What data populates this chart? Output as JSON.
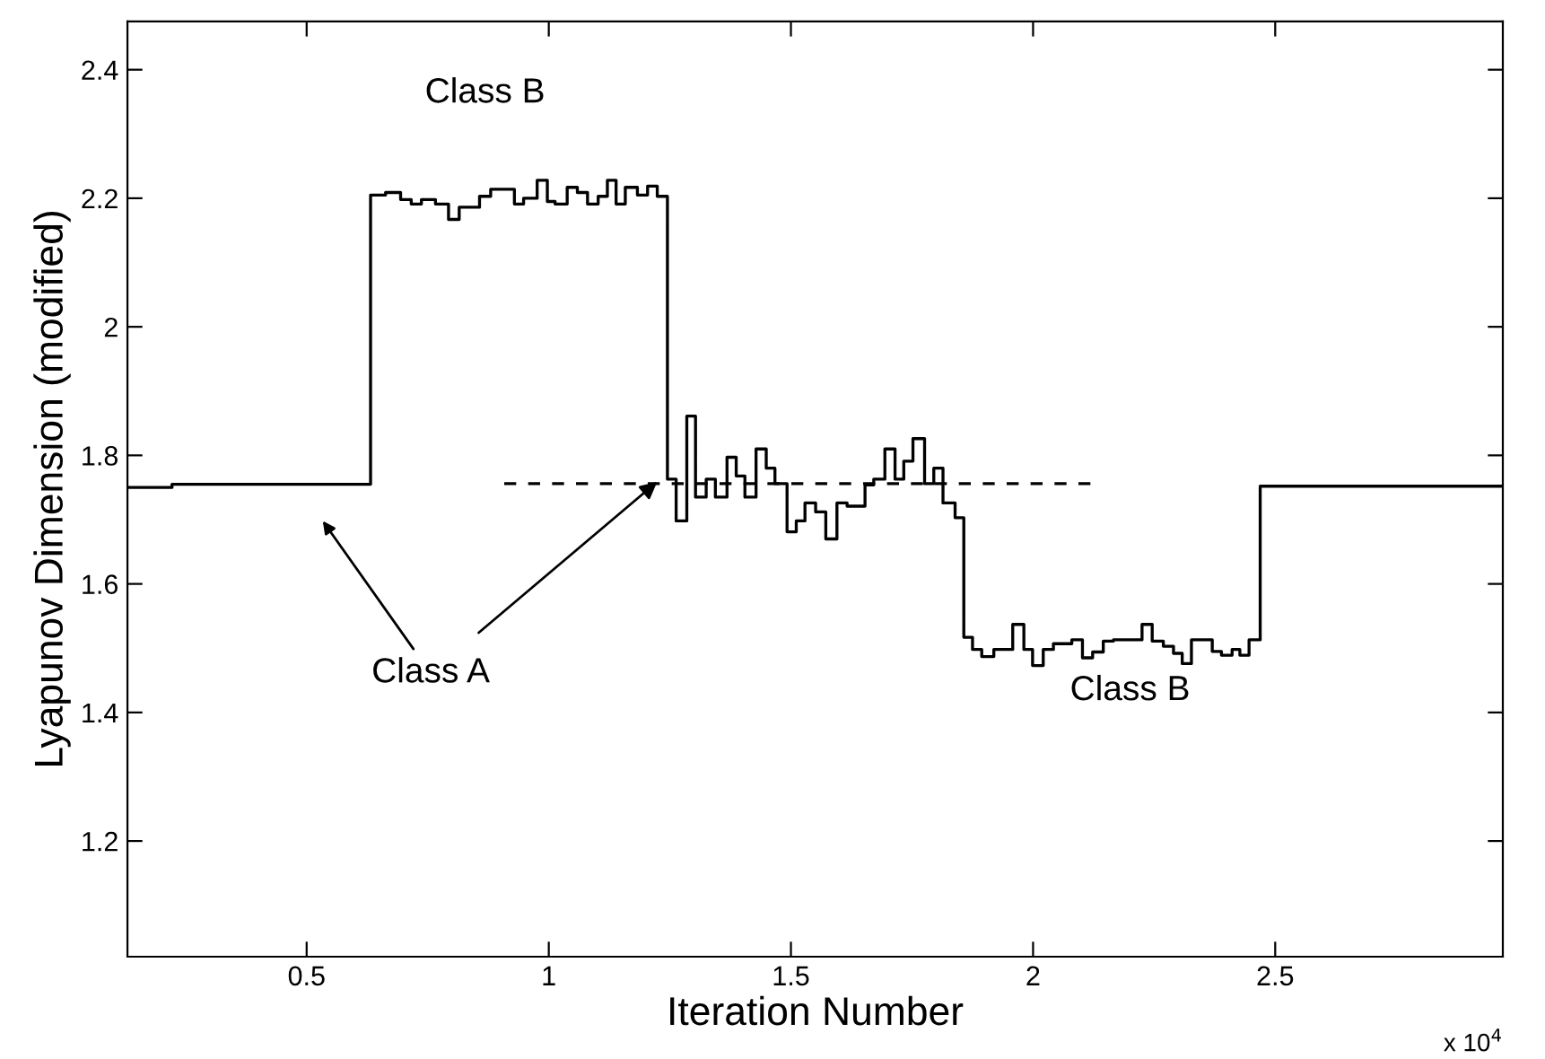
{
  "chart_data": {
    "type": "step",
    "xlabel": "Iteration Number",
    "ylabel": "Lyapunov Dimension (modified)",
    "xlim": [
      0.13,
      2.97
    ],
    "ylim": [
      1.02,
      2.475
    ],
    "xticks": [
      0.5,
      1,
      1.5,
      2,
      2.5
    ],
    "yticks": [
      1.2,
      1.4,
      1.6,
      1.8,
      2,
      2.2,
      2.4
    ],
    "grid": false,
    "legend": false,
    "series": [
      {
        "color": "#000000",
        "line_style": "solid",
        "x": [
          0.13,
          0.222,
          0.632,
          0.663,
          0.694,
          0.716,
          0.737,
          0.766,
          0.793,
          0.815,
          0.857,
          0.88,
          0.929,
          0.948,
          0.976,
          0.997,
          1.013,
          1.038,
          1.059,
          1.08,
          1.102,
          1.121,
          1.139,
          1.158,
          1.183,
          1.204,
          1.224,
          1.245,
          1.263,
          1.285,
          1.303,
          1.325,
          1.344,
          1.368,
          1.387,
          1.405,
          1.428,
          1.449,
          1.467,
          1.492,
          1.511,
          1.529,
          1.551,
          1.572,
          1.595,
          1.616,
          1.653,
          1.671,
          1.694,
          1.715,
          1.733,
          1.752,
          1.776,
          1.795,
          1.814,
          1.839,
          1.857,
          1.875,
          1.894,
          1.919,
          1.958,
          1.981,
          1.999,
          2.021,
          2.042,
          2.08,
          2.102,
          2.123,
          2.145,
          2.166,
          2.225,
          2.246,
          2.269,
          2.29,
          2.308,
          2.327,
          2.37,
          2.389,
          2.411,
          2.427,
          2.446,
          2.469,
          2.97
        ],
        "values": [
          1.75,
          1.755,
          2.205,
          2.209,
          2.198,
          2.191,
          2.198,
          2.191,
          2.167,
          2.186,
          2.203,
          2.214,
          2.191,
          2.2,
          2.228,
          2.195,
          2.191,
          2.217,
          2.209,
          2.191,
          2.203,
          2.228,
          2.191,
          2.217,
          2.205,
          2.219,
          2.203,
          1.763,
          1.698,
          1.861,
          1.735,
          1.763,
          1.735,
          1.797,
          1.768,
          1.735,
          1.81,
          1.78,
          1.756,
          1.681,
          1.698,
          1.726,
          1.712,
          1.67,
          1.726,
          1.721,
          1.754,
          1.763,
          1.81,
          1.763,
          1.791,
          1.826,
          1.756,
          1.78,
          1.726,
          1.703,
          1.517,
          1.498,
          1.487,
          1.498,
          1.537,
          1.498,
          1.473,
          1.498,
          1.507,
          1.513,
          1.485,
          1.494,
          1.511,
          1.513,
          1.537,
          1.511,
          1.503,
          1.492,
          1.476,
          1.513,
          1.495,
          1.489,
          1.498,
          1.489,
          1.513,
          1.752,
          1.752
        ]
      },
      {
        "type": "line",
        "color": "#000000",
        "line_style": "dashed",
        "x": [
          0.908,
          2.129
        ],
        "values": [
          1.756,
          1.756
        ]
      }
    ],
    "annotations": [
      "Class B",
      {
        "text": "Class A",
        "x": 1.224,
        "y": 1.759
      },
      "Class B",
      "x 10$^{4}$"
    ]
  }
}
